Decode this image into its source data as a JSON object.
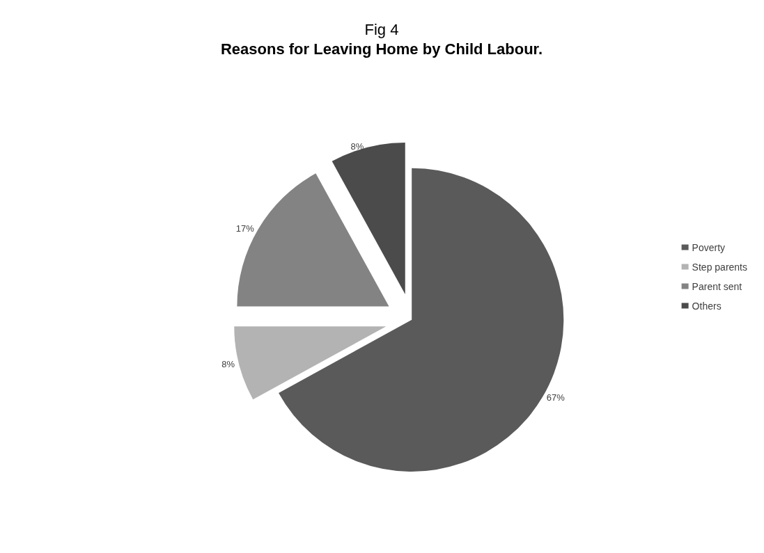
{
  "chart_data": {
    "type": "pie",
    "title": "Fig 4",
    "subtitle": "Reasons for Leaving Home by Child Labour.",
    "categories": [
      "Poverty",
      "Step parents",
      "Parent sent",
      "Others"
    ],
    "values": [
      67,
      8,
      17,
      8
    ],
    "colors": [
      "#5a5a5a",
      "#b3b3b3",
      "#838383",
      "#4b4b4b"
    ],
    "value_labels": [
      "67%",
      "8%",
      "17%",
      "8%"
    ],
    "legend": "right"
  }
}
